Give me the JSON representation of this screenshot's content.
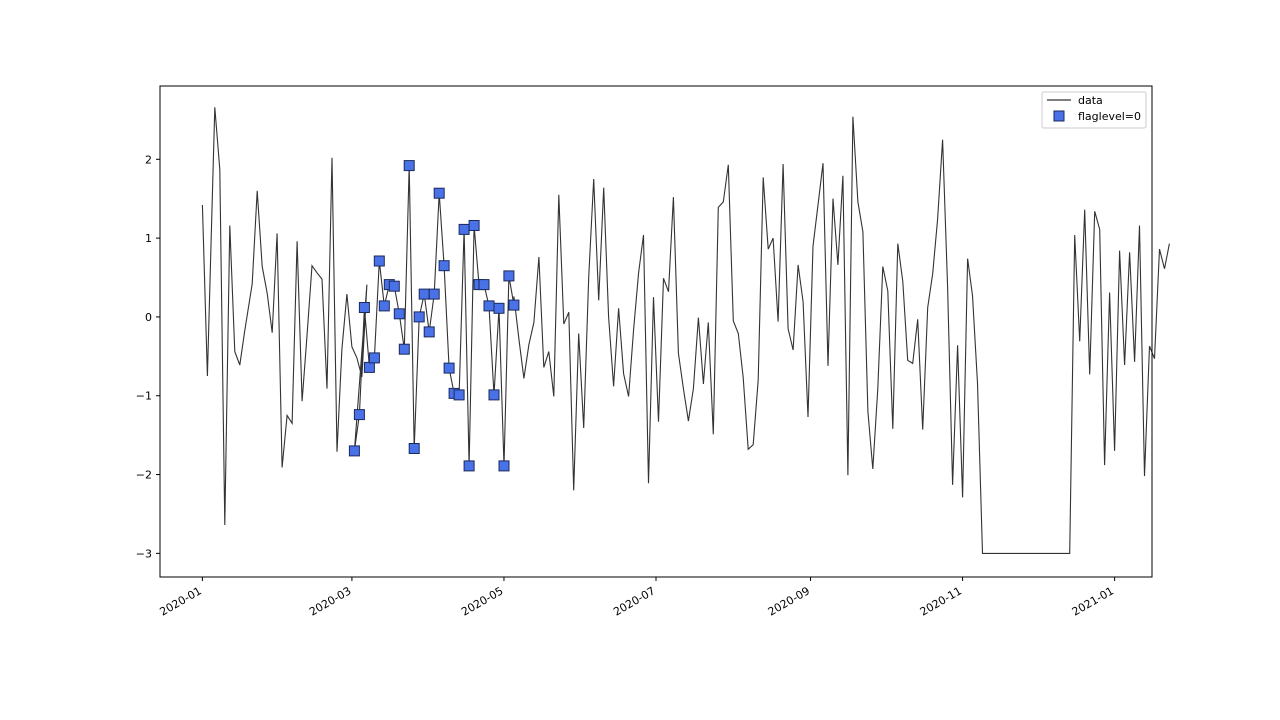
{
  "chart_data": {
    "type": "line",
    "title": "",
    "xlabel": "",
    "ylabel": "",
    "xlim": [
      "2019-12-15",
      "2021-01-16"
    ],
    "ylim": [
      -3.3,
      2.93
    ],
    "grid": false,
    "legend_position": "top-right",
    "x_ticks": [
      "2020-01",
      "2020-03",
      "2020-05",
      "2020-07",
      "2020-09",
      "2020-11",
      "2021-01"
    ],
    "y_ticks": [
      -3,
      -2,
      -1,
      0,
      1,
      2
    ],
    "colors": {
      "line": "#333333",
      "marker_fill": "#4a72e8",
      "marker_edge": "#1b2a5c"
    },
    "series": [
      {
        "name": "data",
        "kind": "line",
        "points": [
          [
            "2020-01-01",
            1.42
          ],
          [
            "2020-01-03",
            -0.75
          ],
          [
            "2020-01-06",
            2.66
          ],
          [
            "2020-01-08",
            1.87
          ],
          [
            "2020-01-10",
            -2.64
          ],
          [
            "2020-01-12",
            1.16
          ],
          [
            "2020-01-14",
            -0.44
          ],
          [
            "2020-01-16",
            -0.61
          ],
          [
            "2020-01-18",
            -0.18
          ],
          [
            "2020-01-21",
            0.42
          ],
          [
            "2020-01-23",
            1.6
          ],
          [
            "2020-01-25",
            0.64
          ],
          [
            "2020-01-27",
            0.3
          ],
          [
            "2020-01-29",
            -0.2
          ],
          [
            "2020-01-31",
            1.06
          ],
          [
            "2020-02-02",
            -1.91
          ],
          [
            "2020-02-04",
            -1.25
          ],
          [
            "2020-02-06",
            -1.35
          ],
          [
            "2020-02-08",
            0.96
          ],
          [
            "2020-02-10",
            -1.07
          ],
          [
            "2020-02-12",
            -0.22
          ],
          [
            "2020-02-14",
            0.65
          ],
          [
            "2020-02-16",
            0.56
          ],
          [
            "2020-02-18",
            0.48
          ],
          [
            "2020-02-20",
            -0.91
          ],
          [
            "2020-02-22",
            2.02
          ],
          [
            "2020-02-24",
            -1.71
          ],
          [
            "2020-02-26",
            -0.41
          ],
          [
            "2020-02-28",
            0.29
          ],
          [
            "2020-03-01",
            -0.38
          ],
          [
            "2020-03-03",
            -0.52
          ],
          [
            "2020-03-05",
            -0.76
          ],
          [
            "2020-03-07",
            0.41
          ],
          [
            "2020-03-02",
            -1.7
          ],
          [
            "2020-03-04",
            -1.24
          ],
          [
            "2020-03-06",
            0.12
          ],
          [
            "2020-03-08",
            -0.64
          ],
          [
            "2020-03-10",
            -0.52
          ],
          [
            "2020-03-12",
            0.71
          ],
          [
            "2020-03-14",
            0.14
          ],
          [
            "2020-03-16",
            0.41
          ],
          [
            "2020-03-18",
            0.39
          ],
          [
            "2020-03-20",
            0.04
          ],
          [
            "2020-03-22",
            -0.41
          ],
          [
            "2020-03-24",
            1.92
          ],
          [
            "2020-03-26",
            -1.67
          ],
          [
            "2020-03-28",
            0.0
          ],
          [
            "2020-03-30",
            0.29
          ],
          [
            "2020-04-01",
            -0.19
          ],
          [
            "2020-04-03",
            0.29
          ],
          [
            "2020-04-05",
            1.57
          ],
          [
            "2020-04-07",
            0.65
          ],
          [
            "2020-04-09",
            -0.65
          ],
          [
            "2020-04-11",
            -0.97
          ],
          [
            "2020-04-13",
            -0.99
          ],
          [
            "2020-04-15",
            1.11
          ],
          [
            "2020-04-17",
            -1.89
          ],
          [
            "2020-04-19",
            1.16
          ],
          [
            "2020-04-21",
            0.41
          ],
          [
            "2020-04-23",
            0.41
          ],
          [
            "2020-04-25",
            0.14
          ],
          [
            "2020-04-27",
            -0.99
          ],
          [
            "2020-04-29",
            0.11
          ],
          [
            "2020-05-01",
            -1.89
          ],
          [
            "2020-05-03",
            0.52
          ],
          [
            "2020-05-05",
            0.15
          ],
          [
            "2020-05-05",
            0.26
          ],
          [
            "2020-05-07",
            -0.28
          ],
          [
            "2020-05-09",
            -0.78
          ],
          [
            "2020-05-11",
            -0.35
          ],
          [
            "2020-05-13",
            -0.07
          ],
          [
            "2020-05-15",
            0.76
          ],
          [
            "2020-05-17",
            -0.64
          ],
          [
            "2020-05-19",
            -0.44
          ],
          [
            "2020-05-21",
            -1.01
          ],
          [
            "2020-05-23",
            1.55
          ],
          [
            "2020-05-25",
            -0.09
          ],
          [
            "2020-05-27",
            0.06
          ],
          [
            "2020-05-29",
            -2.2
          ],
          [
            "2020-05-31",
            -0.21
          ],
          [
            "2020-06-02",
            -1.41
          ],
          [
            "2020-06-04",
            0.5
          ],
          [
            "2020-06-06",
            1.75
          ],
          [
            "2020-06-08",
            0.21
          ],
          [
            "2020-06-10",
            1.64
          ],
          [
            "2020-06-12",
            0.0
          ],
          [
            "2020-06-14",
            -0.88
          ],
          [
            "2020-06-16",
            0.11
          ],
          [
            "2020-06-18",
            -0.72
          ],
          [
            "2020-06-20",
            -1.01
          ],
          [
            "2020-06-22",
            -0.16
          ],
          [
            "2020-06-24",
            0.56
          ],
          [
            "2020-06-26",
            1.04
          ],
          [
            "2020-06-28",
            -2.11
          ],
          [
            "2020-06-30",
            0.25
          ],
          [
            "2020-07-02",
            -1.33
          ],
          [
            "2020-07-04",
            0.49
          ],
          [
            "2020-07-06",
            0.32
          ],
          [
            "2020-07-08",
            1.52
          ],
          [
            "2020-07-10",
            -0.46
          ],
          [
            "2020-07-12",
            -0.91
          ],
          [
            "2020-07-14",
            -1.32
          ],
          [
            "2020-07-16",
            -0.91
          ],
          [
            "2020-07-18",
            -0.01
          ],
          [
            "2020-07-20",
            -0.85
          ],
          [
            "2020-07-22",
            -0.07
          ],
          [
            "2020-07-24",
            -1.49
          ],
          [
            "2020-07-26",
            1.39
          ],
          [
            "2020-07-28",
            1.46
          ],
          [
            "2020-07-30",
            1.93
          ],
          [
            "2020-08-01",
            -0.05
          ],
          [
            "2020-08-03",
            -0.21
          ],
          [
            "2020-08-05",
            -0.77
          ],
          [
            "2020-08-07",
            -1.68
          ],
          [
            "2020-08-09",
            -1.62
          ],
          [
            "2020-08-11",
            -0.8
          ],
          [
            "2020-08-13",
            1.77
          ],
          [
            "2020-08-15",
            0.86
          ],
          [
            "2020-08-17",
            1.0
          ],
          [
            "2020-08-19",
            -0.06
          ],
          [
            "2020-08-21",
            1.94
          ],
          [
            "2020-08-23",
            -0.15
          ],
          [
            "2020-08-25",
            -0.42
          ],
          [
            "2020-08-27",
            0.66
          ],
          [
            "2020-08-29",
            0.19
          ],
          [
            "2020-08-31",
            -1.27
          ],
          [
            "2020-09-02",
            0.9
          ],
          [
            "2020-09-04",
            1.42
          ],
          [
            "2020-09-06",
            1.95
          ],
          [
            "2020-09-08",
            -0.62
          ],
          [
            "2020-09-10",
            1.5
          ],
          [
            "2020-09-12",
            0.66
          ],
          [
            "2020-09-14",
            1.79
          ],
          [
            "2020-09-16",
            -2.01
          ],
          [
            "2020-09-18",
            2.54
          ],
          [
            "2020-09-20",
            1.46
          ],
          [
            "2020-09-22",
            1.08
          ],
          [
            "2020-09-24",
            -1.2
          ],
          [
            "2020-09-26",
            -1.93
          ],
          [
            "2020-09-28",
            -0.91
          ],
          [
            "2020-09-30",
            0.64
          ],
          [
            "2020-10-02",
            0.33
          ],
          [
            "2020-10-04",
            -1.42
          ],
          [
            "2020-10-06",
            0.93
          ],
          [
            "2020-10-08",
            0.45
          ],
          [
            "2020-10-10",
            -0.55
          ],
          [
            "2020-10-12",
            -0.59
          ],
          [
            "2020-10-14",
            -0.03
          ],
          [
            "2020-10-16",
            -1.43
          ],
          [
            "2020-10-18",
            0.12
          ],
          [
            "2020-10-20",
            0.55
          ],
          [
            "2020-10-22",
            1.24
          ],
          [
            "2020-10-24",
            2.25
          ],
          [
            "2020-10-26",
            0.38
          ],
          [
            "2020-10-28",
            -2.13
          ],
          [
            "2020-10-30",
            -0.36
          ],
          [
            "2020-11-01",
            -2.29
          ],
          [
            "2020-11-03",
            0.74
          ],
          [
            "2020-11-05",
            0.27
          ],
          [
            "2020-11-07",
            -0.84
          ],
          [
            "2020-11-09",
            -3.0
          ],
          [
            "2020-12-14",
            -3.0
          ],
          [
            "2020-12-16",
            1.04
          ],
          [
            "2020-12-18",
            -0.31
          ],
          [
            "2020-12-20",
            1.36
          ],
          [
            "2020-12-22",
            -0.73
          ],
          [
            "2020-12-24",
            1.34
          ],
          [
            "2020-12-26",
            1.11
          ],
          [
            "2020-12-28",
            -1.88
          ],
          [
            "2020-12-30",
            0.31
          ],
          [
            "2021-01-01",
            -1.7
          ],
          [
            "2021-01-03",
            0.84
          ],
          [
            "2021-01-05",
            -0.61
          ],
          [
            "2021-01-07",
            0.82
          ],
          [
            "2021-01-09",
            -0.57
          ],
          [
            "2021-01-11",
            1.16
          ],
          [
            "2021-01-13",
            -2.02
          ],
          [
            "2021-01-15",
            -0.37
          ],
          [
            "2021-01-17",
            -0.53
          ],
          [
            "2021-01-19",
            0.86
          ],
          [
            "2021-01-21",
            0.61
          ],
          [
            "2021-01-23",
            0.93
          ]
        ]
      },
      {
        "name": "flaglevel=0",
        "kind": "scatter",
        "marker": "square",
        "points": [
          [
            "2020-03-02",
            -1.7
          ],
          [
            "2020-03-04",
            -1.24
          ],
          [
            "2020-03-06",
            0.12
          ],
          [
            "2020-03-08",
            -0.64
          ],
          [
            "2020-03-10",
            -0.52
          ],
          [
            "2020-03-12",
            0.71
          ],
          [
            "2020-03-14",
            0.14
          ],
          [
            "2020-03-16",
            0.41
          ],
          [
            "2020-03-18",
            0.39
          ],
          [
            "2020-03-20",
            0.04
          ],
          [
            "2020-03-22",
            -0.41
          ],
          [
            "2020-03-24",
            1.92
          ],
          [
            "2020-03-26",
            -1.67
          ],
          [
            "2020-03-28",
            0.0
          ],
          [
            "2020-03-30",
            0.29
          ],
          [
            "2020-04-01",
            -0.19
          ],
          [
            "2020-04-03",
            0.29
          ],
          [
            "2020-04-05",
            1.57
          ],
          [
            "2020-04-07",
            0.65
          ],
          [
            "2020-04-09",
            -0.65
          ],
          [
            "2020-04-11",
            -0.97
          ],
          [
            "2020-04-13",
            -0.99
          ],
          [
            "2020-04-15",
            1.11
          ],
          [
            "2020-04-17",
            -1.89
          ],
          [
            "2020-04-19",
            1.16
          ],
          [
            "2020-04-21",
            0.41
          ],
          [
            "2020-04-23",
            0.41
          ],
          [
            "2020-04-25",
            0.14
          ],
          [
            "2020-04-27",
            -0.99
          ],
          [
            "2020-04-29",
            0.11
          ],
          [
            "2020-05-01",
            -1.89
          ],
          [
            "2020-05-03",
            0.52
          ],
          [
            "2020-05-05",
            0.15
          ]
        ]
      }
    ]
  }
}
